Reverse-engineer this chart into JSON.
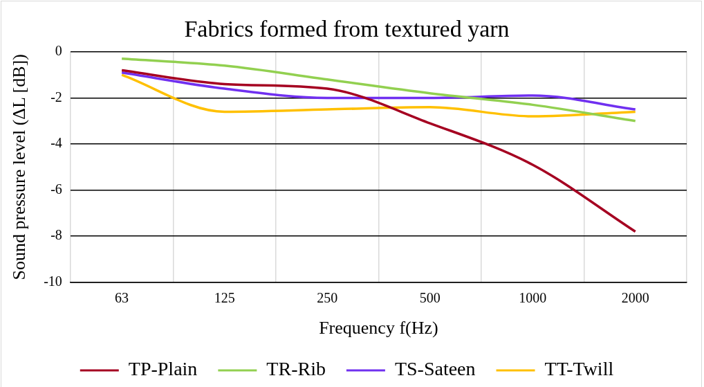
{
  "chart_data": {
    "type": "line",
    "title": "Fabrics formed from textured yarn",
    "xlabel": "Frequency f(Hz)",
    "ylabel": "Sound pressure level (ΔL [dB])",
    "categories": [
      "63",
      "125",
      "250",
      "500",
      "1000",
      "2000"
    ],
    "series": [
      {
        "name": "TP-Plain",
        "color": "#a50021",
        "values": [
          -0.8,
          -1.4,
          -1.6,
          -3.1,
          -4.9,
          -7.8
        ]
      },
      {
        "name": "TR-Rib",
        "color": "#92d050",
        "values": [
          -0.3,
          -0.6,
          -1.2,
          -1.8,
          -2.3,
          -3.0
        ]
      },
      {
        "name": "TS-Sateen",
        "color": "#7030f0",
        "values": [
          -0.9,
          -1.6,
          -2.0,
          -2.0,
          -1.9,
          -2.5
        ]
      },
      {
        "name": "TT-Twill",
        "color": "#ffc000",
        "values": [
          -1.0,
          -2.6,
          -2.5,
          -2.4,
          -2.8,
          -2.6
        ]
      }
    ],
    "ylim": [
      -10,
      0
    ],
    "yticks": [
      -10,
      -8,
      -6,
      -4,
      -2,
      0
    ],
    "grid": true,
    "legend": "bottom",
    "marker": "none",
    "line_style": "solid"
  }
}
